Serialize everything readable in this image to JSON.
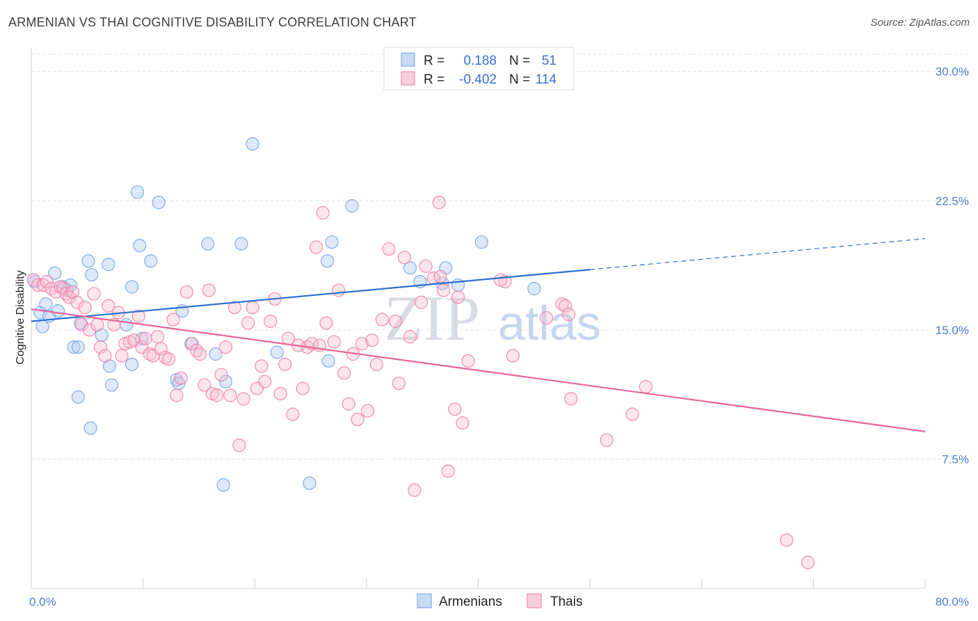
{
  "header": {
    "title": "ARMENIAN VS THAI COGNITIVE DISABILITY CORRELATION CHART",
    "source": "Source: ZipAtlas.com"
  },
  "watermark": {
    "zip": "ZIP",
    "atlas": "atlas"
  },
  "legend": {
    "rows": [
      {
        "r_label": "R =",
        "r_value": "0.188",
        "n_label": "N =",
        "n_value": "51",
        "color": "#6fa0e0"
      },
      {
        "r_label": "R =",
        "r_value": "-0.402",
        "n_label": "N =",
        "n_value": "114",
        "color": "#ee7aa0"
      }
    ]
  },
  "chart_data": {
    "type": "scatter",
    "title": "ARMENIAN VS THAI COGNITIVE DISABILITY CORRELATION CHART",
    "ylabel": "Cognitive Disability",
    "xlabel": "",
    "xlim": [
      0,
      80
    ],
    "ylim": [
      0,
      31
    ],
    "x_tick_labels": [
      "0.0%",
      "80.0%"
    ],
    "y_ticks": [
      7.5,
      15.0,
      22.5,
      30.0
    ],
    "y_tick_labels": [
      "7.5%",
      "15.0%",
      "22.5%",
      "30.0%"
    ],
    "grid": true,
    "legend_position": "bottom-center",
    "series": [
      {
        "name": "Armenians",
        "color": "#6fa0e0",
        "r": 0.188,
        "n": 51,
        "trend": {
          "x": [
            0,
            50
          ],
          "y": [
            15.5,
            18.5
          ],
          "dashed_to": [
            80,
            20.3
          ]
        },
        "points": [
          [
            0.3,
            17.8
          ],
          [
            0.8,
            16.0
          ],
          [
            1.3,
            16.5
          ],
          [
            1.0,
            15.2
          ],
          [
            1.6,
            15.8
          ],
          [
            2.1,
            18.3
          ],
          [
            2.4,
            16.1
          ],
          [
            2.8,
            17.5
          ],
          [
            3.2,
            17.3
          ],
          [
            3.5,
            17.6
          ],
          [
            3.8,
            14.0
          ],
          [
            4.2,
            14.0
          ],
          [
            4.4,
            15.4
          ],
          [
            5.1,
            19.0
          ],
          [
            5.4,
            18.2
          ],
          [
            6.3,
            14.7
          ],
          [
            6.9,
            18.8
          ],
          [
            7.0,
            12.9
          ],
          [
            7.2,
            11.8
          ],
          [
            8.5,
            15.3
          ],
          [
            9.0,
            13.0
          ],
          [
            9.0,
            17.5
          ],
          [
            9.5,
            23.0
          ],
          [
            9.7,
            19.9
          ],
          [
            9.9,
            14.5
          ],
          [
            10.7,
            19.0
          ],
          [
            11.4,
            22.4
          ],
          [
            13.0,
            12.1
          ],
          [
            13.2,
            11.9
          ],
          [
            13.5,
            16.1
          ],
          [
            14.3,
            14.2
          ],
          [
            15.8,
            20.0
          ],
          [
            16.5,
            13.6
          ],
          [
            17.2,
            6.0
          ],
          [
            17.4,
            12.0
          ],
          [
            18.8,
            20.0
          ],
          [
            19.8,
            25.8
          ],
          [
            22.0,
            13.7
          ],
          [
            24.9,
            6.1
          ],
          [
            26.5,
            19.0
          ],
          [
            26.6,
            13.2
          ],
          [
            26.9,
            20.1
          ],
          [
            28.7,
            22.2
          ],
          [
            33.9,
            18.6
          ],
          [
            34.8,
            17.8
          ],
          [
            36.8,
            17.7
          ],
          [
            37.1,
            18.6
          ],
          [
            38.2,
            17.6
          ],
          [
            40.3,
            20.1
          ],
          [
            45.0,
            17.4
          ],
          [
            4.2,
            11.1
          ],
          [
            5.3,
            9.3
          ]
        ]
      },
      {
        "name": "Thais",
        "color": "#ee7aa0",
        "r": -0.402,
        "n": 114,
        "trend": {
          "x": [
            0,
            80
          ],
          "y": [
            16.2,
            9.1
          ]
        },
        "points": [
          [
            0.2,
            17.9
          ],
          [
            0.6,
            17.6
          ],
          [
            1.1,
            17.6
          ],
          [
            1.4,
            17.8
          ],
          [
            1.8,
            17.4
          ],
          [
            2.2,
            17.2
          ],
          [
            2.6,
            17.5
          ],
          [
            2.9,
            17.4
          ],
          [
            3.1,
            17.1
          ],
          [
            3.4,
            16.9
          ],
          [
            3.7,
            17.2
          ],
          [
            4.1,
            16.6
          ],
          [
            4.5,
            15.3
          ],
          [
            4.8,
            16.3
          ],
          [
            5.2,
            15.0
          ],
          [
            5.6,
            17.1
          ],
          [
            5.9,
            15.3
          ],
          [
            6.2,
            14.0
          ],
          [
            6.6,
            13.5
          ],
          [
            6.9,
            16.4
          ],
          [
            7.4,
            15.3
          ],
          [
            7.8,
            16.0
          ],
          [
            8.1,
            13.5
          ],
          [
            8.4,
            14.2
          ],
          [
            8.8,
            14.3
          ],
          [
            9.2,
            14.4
          ],
          [
            9.6,
            15.8
          ],
          [
            9.9,
            14.0
          ],
          [
            10.2,
            14.5
          ],
          [
            10.6,
            13.6
          ],
          [
            10.9,
            13.5
          ],
          [
            11.3,
            14.6
          ],
          [
            11.6,
            13.9
          ],
          [
            12.0,
            13.4
          ],
          [
            12.3,
            13.3
          ],
          [
            12.7,
            15.6
          ],
          [
            13.0,
            11.2
          ],
          [
            13.4,
            12.2
          ],
          [
            13.9,
            17.2
          ],
          [
            14.4,
            14.2
          ],
          [
            14.8,
            13.8
          ],
          [
            15.1,
            13.6
          ],
          [
            15.5,
            11.8
          ],
          [
            15.9,
            17.3
          ],
          [
            16.2,
            11.3
          ],
          [
            16.6,
            11.2
          ],
          [
            17.0,
            12.4
          ],
          [
            17.4,
            14.0
          ],
          [
            17.8,
            11.2
          ],
          [
            18.2,
            16.3
          ],
          [
            18.6,
            8.3
          ],
          [
            19.0,
            11.0
          ],
          [
            19.4,
            15.4
          ],
          [
            19.8,
            16.3
          ],
          [
            20.2,
            11.6
          ],
          [
            20.6,
            12.9
          ],
          [
            20.9,
            12.0
          ],
          [
            21.4,
            15.5
          ],
          [
            21.8,
            16.8
          ],
          [
            22.3,
            11.3
          ],
          [
            22.7,
            13.0
          ],
          [
            23.0,
            14.5
          ],
          [
            23.4,
            10.1
          ],
          [
            23.9,
            14.1
          ],
          [
            24.3,
            11.6
          ],
          [
            24.7,
            14.0
          ],
          [
            25.1,
            14.2
          ],
          [
            25.5,
            19.8
          ],
          [
            25.8,
            14.1
          ],
          [
            26.1,
            21.8
          ],
          [
            26.4,
            15.4
          ],
          [
            27.1,
            14.3
          ],
          [
            27.5,
            17.3
          ],
          [
            28.0,
            12.5
          ],
          [
            28.4,
            10.7
          ],
          [
            28.8,
            13.6
          ],
          [
            29.2,
            9.8
          ],
          [
            29.6,
            14.2
          ],
          [
            30.1,
            10.3
          ],
          [
            30.5,
            14.4
          ],
          [
            30.9,
            13.0
          ],
          [
            31.4,
            15.6
          ],
          [
            32.0,
            19.7
          ],
          [
            32.6,
            15.5
          ],
          [
            32.9,
            11.9
          ],
          [
            33.4,
            19.2
          ],
          [
            33.9,
            14.6
          ],
          [
            34.3,
            5.7
          ],
          [
            34.9,
            16.6
          ],
          [
            35.3,
            18.7
          ],
          [
            36.0,
            18.0
          ],
          [
            36.5,
            22.4
          ],
          [
            36.9,
            17.3
          ],
          [
            37.3,
            6.8
          ],
          [
            37.9,
            10.4
          ],
          [
            38.2,
            16.9
          ],
          [
            38.6,
            9.6
          ],
          [
            39.1,
            13.2
          ],
          [
            42.4,
            17.8
          ],
          [
            43.1,
            13.5
          ],
          [
            46.1,
            15.7
          ],
          [
            47.5,
            16.5
          ],
          [
            47.8,
            16.4
          ],
          [
            48.1,
            15.9
          ],
          [
            48.3,
            11.0
          ],
          [
            51.5,
            8.6
          ],
          [
            53.8,
            10.1
          ],
          [
            55.0,
            11.7
          ],
          [
            67.6,
            2.8
          ],
          [
            69.5,
            1.5
          ],
          [
            42.0,
            17.9
          ],
          [
            36.6,
            18.1
          ]
        ]
      }
    ]
  }
}
